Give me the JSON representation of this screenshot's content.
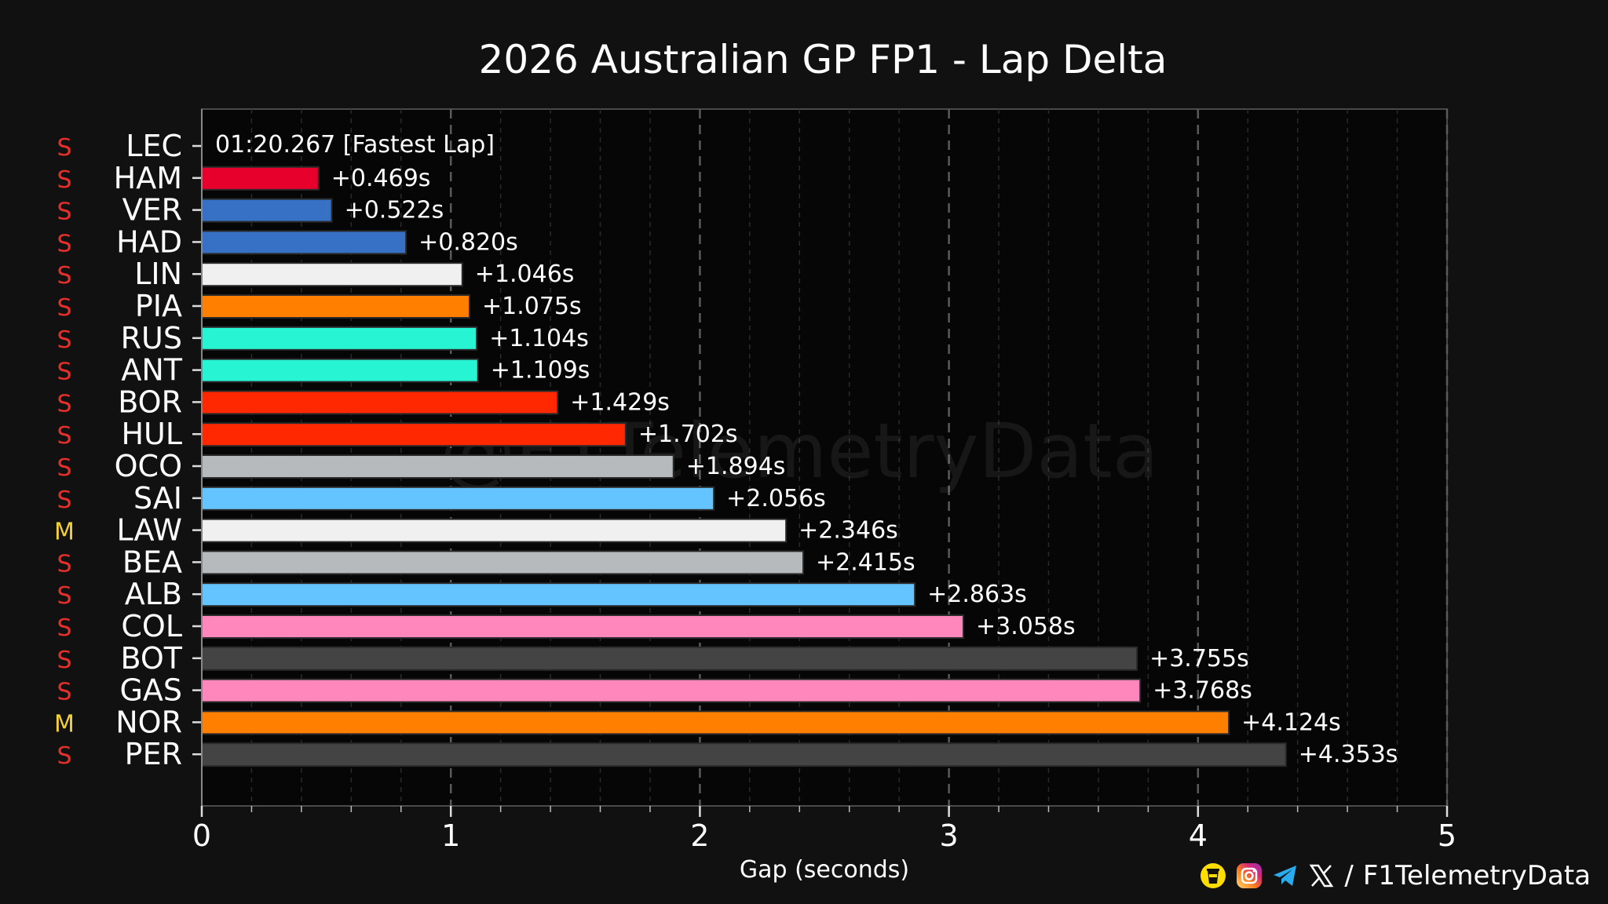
{
  "chart_data": {
    "type": "bar",
    "orientation": "horizontal",
    "title": "2026 Australian GP FP1 - Lap Delta",
    "xlabel": "Gap (seconds)",
    "ylabel": "",
    "xlim": [
      0,
      5
    ],
    "xticks": [
      "0",
      "1",
      "2",
      "3",
      "4",
      "5"
    ],
    "grid": true,
    "fastest_label": "01:20.267 [Fastest Lap]",
    "watermark": "@F1TelemetryData",
    "categories": [
      "LEC",
      "HAM",
      "VER",
      "HAD",
      "LIN",
      "PIA",
      "RUS",
      "ANT",
      "BOR",
      "HUL",
      "OCO",
      "SAI",
      "LAW",
      "BEA",
      "ALB",
      "COL",
      "BOT",
      "GAS",
      "NOR",
      "PER"
    ],
    "tyres": [
      "S",
      "S",
      "S",
      "S",
      "S",
      "S",
      "S",
      "S",
      "S",
      "S",
      "S",
      "S",
      "M",
      "S",
      "S",
      "S",
      "S",
      "S",
      "M",
      "S"
    ],
    "values": [
      0,
      0.469,
      0.522,
      0.82,
      1.046,
      1.075,
      1.104,
      1.109,
      1.429,
      1.702,
      1.894,
      2.056,
      2.346,
      2.415,
      2.863,
      3.058,
      3.755,
      3.768,
      4.124,
      4.353
    ],
    "value_labels": [
      "",
      "+0.469s",
      "+0.522s",
      "+0.820s",
      "+1.046s",
      "+1.075s",
      "+1.104s",
      "+1.109s",
      "+1.429s",
      "+1.702s",
      "+1.894s",
      "+2.056s",
      "+2.346s",
      "+2.415s",
      "+2.863s",
      "+3.058s",
      "+3.755s",
      "+3.768s",
      "+4.124s",
      "+4.353s"
    ],
    "bar_colors": [
      "#000000",
      "#E8002D",
      "#3671C6",
      "#3671C6",
      "#F0F0F0",
      "#FF8000",
      "#27F4D2",
      "#27F4D2",
      "#FF2800",
      "#FF2800",
      "#B6BABD",
      "#64C4FF",
      "#F0F0F0",
      "#B6BABD",
      "#64C4FF",
      "#FF87BC",
      "#444444",
      "#FF87BC",
      "#FF8000",
      "#444444"
    ],
    "tyre_colors": {
      "S": "#E8302A",
      "M": "#F5D033"
    }
  },
  "footer": {
    "handle": "F1TelemetryData",
    "separator": "/",
    "icons": [
      "buymeacoffee-icon",
      "instagram-icon",
      "telegram-icon",
      "x-icon"
    ]
  },
  "colors": {
    "background": "#111111",
    "plot_background": "#060606",
    "grid": "#3a3a3a"
  }
}
